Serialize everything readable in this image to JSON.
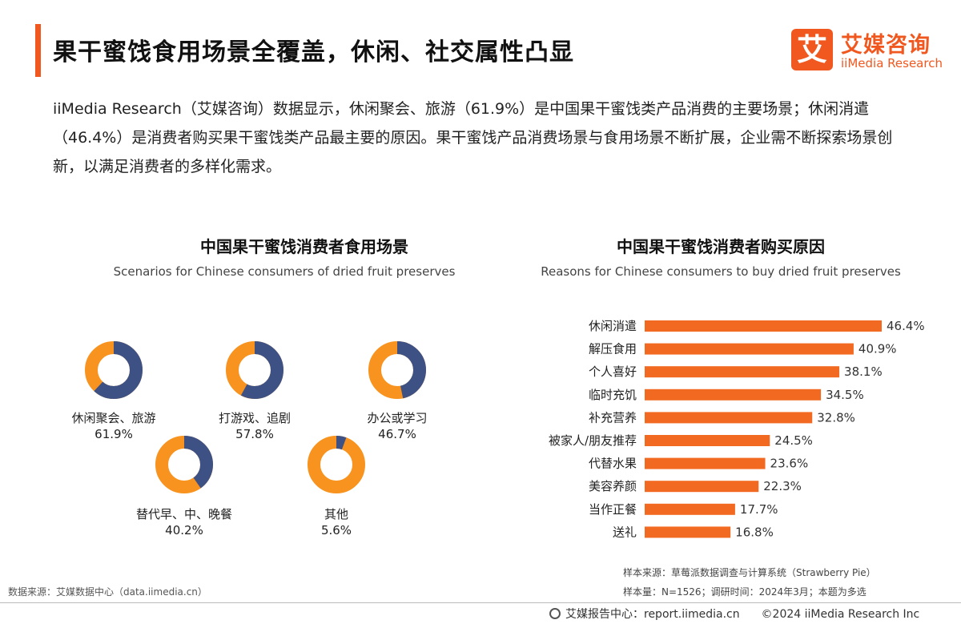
{
  "header": {
    "title": "果干蜜饯食用场景全覆盖，休闲、社交属性凸显",
    "logo_mark": "艾",
    "logo_cn": "艾媒咨询",
    "logo_en": "iiMedia Research"
  },
  "intro": "iiMedia Research（艾媒咨询）数据显示，休闲聚会、旅游（61.9%）是中国果干蜜饯类产品消费的主要场景；休闲消遣（46.4%）是消费者购买果干蜜饯类产品最主要的原因。果干蜜饯产品消费场景与食用场景不断扩展，企业需不断探索场景创新，以满足消费者的多样化需求。",
  "colors": {
    "accent": "#f0581f",
    "navy": "#3e5184",
    "orange": "#f7931e",
    "bar": "#f26a21"
  },
  "chart_data": [
    {
      "type": "pie",
      "title": "中国果干蜜饯消费者食用场景",
      "subtitle": "Scenarios for Chinese consumers of dried fruit preserves",
      "items": [
        {
          "label": "休闲聚会、旅游",
          "value": 61.9,
          "value_label": "61.9%"
        },
        {
          "label": "打游戏、追剧",
          "value": 57.8,
          "value_label": "57.8%"
        },
        {
          "label": "办公或学习",
          "value": 46.7,
          "value_label": "46.7%"
        },
        {
          "label": "替代早、中、晚餐",
          "value": 40.2,
          "value_label": "40.2%"
        },
        {
          "label": "其他",
          "value": 5.6,
          "value_label": "5.6%"
        }
      ]
    },
    {
      "type": "bar",
      "orientation": "horizontal",
      "title": "中国果干蜜饯消费者购买原因",
      "subtitle": "Reasons for Chinese consumers to buy dried fruit preserves",
      "categories": [
        "休闲消遣",
        "解压食用",
        "个人喜好",
        "临时充饥",
        "补充营养",
        "被家人/朋友推荐",
        "代替水果",
        "美容养颜",
        "当作正餐",
        "送礼"
      ],
      "values": [
        46.4,
        40.9,
        38.1,
        34.5,
        32.8,
        24.5,
        23.6,
        22.3,
        17.7,
        16.8
      ],
      "value_labels": [
        "46.4%",
        "40.9%",
        "38.1%",
        "34.5%",
        "32.8%",
        "24.5%",
        "23.6%",
        "22.3%",
        "17.7%",
        "16.8%"
      ]
    }
  ],
  "footer": {
    "data_source": "数据来源：艾媒数据中心（data.iimedia.cn）",
    "sample_source": "样本来源：草莓派数据调查与计算系统（Strawberry Pie）",
    "sample_info": "样本量：N=1526；调研时间：2024年3月；本题为多选",
    "report_center": "艾媒报告中心：report.iimedia.cn",
    "copyright": "©2024  iiMedia Research Inc"
  }
}
